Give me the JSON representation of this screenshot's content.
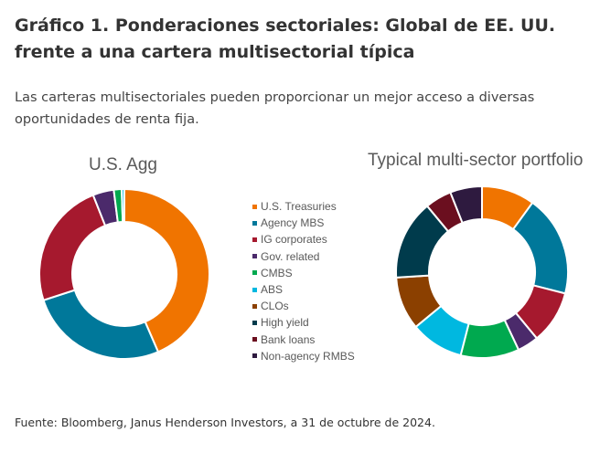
{
  "header": {
    "title": "Gráfico 1. Ponderaciones sectoriales: Global de EE. UU. frente a una cartera multisectorial típica",
    "subtitle": "Las carteras multisectoriales pueden proporcionar un mejor acceso a diversas oportunidades de renta fija."
  },
  "footer": {
    "source": "Fuente: Bloomberg, Janus Henderson Investors, a 31 de octubre de 2024."
  },
  "chart_data": [
    {
      "type": "pie",
      "donut": true,
      "title": "U.S. Agg",
      "categories": [
        "U.S. Treasuries",
        "Agency MBS",
        "IG corporates",
        "Gov. related",
        "CMBS",
        "ABS"
      ],
      "values": [
        43.5,
        26.5,
        24,
        4,
        1.5,
        0.5
      ],
      "unit": "%"
    },
    {
      "type": "pie",
      "donut": true,
      "title": "Typical multi-sector portfolio",
      "categories": [
        "U.S. Treasuries",
        "Agency MBS",
        "IG corporates",
        "Gov. related",
        "CMBS",
        "ABS",
        "CLOs",
        "High yield",
        "Bank loans",
        "Non-agency RMBS"
      ],
      "values": [
        10,
        19,
        10,
        4,
        11,
        10,
        10,
        15,
        5,
        6
      ],
      "unit": "%"
    }
  ],
  "legend": [
    {
      "label": "U.S. Treasuries",
      "color": "#f07400"
    },
    {
      "label": "Agency MBS",
      "color": "#00789a"
    },
    {
      "label": "IG corporates",
      "color": "#a6192e"
    },
    {
      "label": "Gov. related",
      "color": "#4b2a6b"
    },
    {
      "label": "CMBS",
      "color": "#00a94f"
    },
    {
      "label": "ABS",
      "color": "#00b8e0"
    },
    {
      "label": "CLOs",
      "color": "#8b4000"
    },
    {
      "label": "High yield",
      "color": "#003b4c"
    },
    {
      "label": "Bank loans",
      "color": "#6b0f1f"
    },
    {
      "label": "Non-agency RMBS",
      "color": "#2e1a3f"
    }
  ]
}
